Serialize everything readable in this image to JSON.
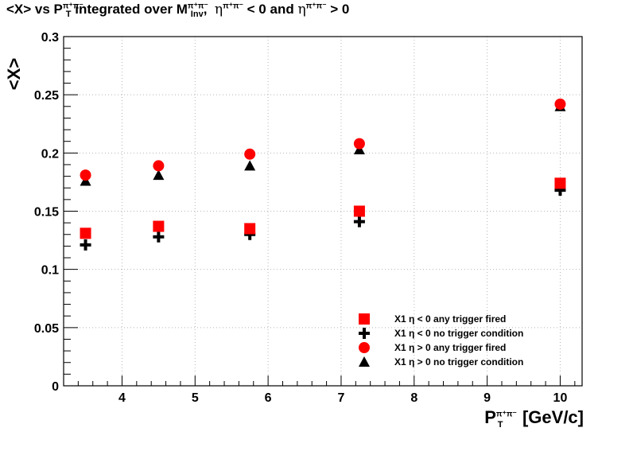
{
  "title": {
    "prefix": "<X> vs P",
    "pt_sup": "π⁺π⁻",
    "pt_sub": "T",
    "middle": " integrated over M",
    "m_sup": "π⁺π⁻",
    "m_sub": "Inv",
    "cond1_eta": "η",
    "cond1_sup": "π⁺π⁻",
    "cond1_rest": " < 0   and  ",
    "cond2_eta": "η",
    "cond2_sup": "π⁺π⁻",
    "cond2_rest": " > 0"
  },
  "chart_data": {
    "type": "scatter",
    "ylabel": "<X>",
    "xlabel_main": "P",
    "xlabel_sup": "π⁺π⁻",
    "xlabel_sub": "T",
    "xlabel_unit": "[GeV/c]",
    "xlim": [
      3.2,
      10.3
    ],
    "ylim": [
      0,
      0.3
    ],
    "x_ticks": [
      "4",
      "5",
      "6",
      "7",
      "8",
      "9",
      "10"
    ],
    "y_ticks": [
      "0",
      "0.05",
      "0.1",
      "0.15",
      "0.2",
      "0.25",
      "0.3"
    ],
    "grid": true,
    "legend_position": "bottom-right",
    "series": [
      {
        "name": "X1   η < 0  any trigger fired",
        "marker": "square",
        "color": "#ff0000",
        "x": [
          3.5,
          4.5,
          5.75,
          7.25,
          10.0
        ],
        "y": [
          0.131,
          0.137,
          0.135,
          0.15,
          0.174
        ]
      },
      {
        "name": "X1   η < 0  no trigger condition",
        "marker": "cross",
        "color": "#000000",
        "x": [
          3.5,
          4.5,
          5.75,
          7.25,
          10.0
        ],
        "y": [
          0.121,
          0.128,
          0.13,
          0.141,
          0.168
        ]
      },
      {
        "name": "X1   η > 0  any trigger fired",
        "marker": "circle",
        "color": "#ff0000",
        "x": [
          3.5,
          4.5,
          5.75,
          7.25,
          10.0
        ],
        "y": [
          0.181,
          0.189,
          0.199,
          0.208,
          0.242
        ]
      },
      {
        "name": "X1   η > 0  no trigger condition",
        "marker": "triangle",
        "color": "#000000",
        "x": [
          3.5,
          4.5,
          5.75,
          7.25,
          10.0
        ],
        "y": [
          0.176,
          0.181,
          0.189,
          0.203,
          0.24
        ]
      }
    ]
  }
}
